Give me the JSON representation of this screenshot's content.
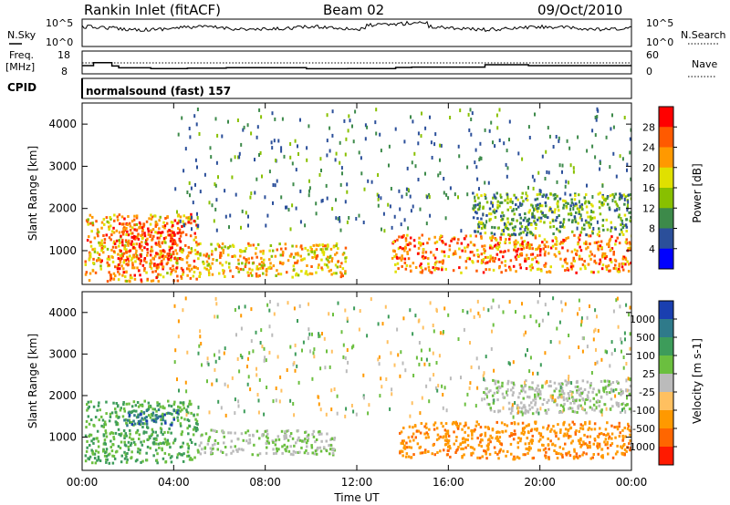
{
  "header": {
    "station": "Rankin Inlet (fitACF)",
    "beam": "Beam 02",
    "date": "09/Oct/2010"
  },
  "nsky_panel": {
    "left_label": "N.Sky",
    "right_label": "N.Search",
    "left_ticks": [
      "10^5",
      "10^0"
    ],
    "right_ticks": [
      "10^5",
      "10^0"
    ]
  },
  "freq_panel": {
    "left_label_1": "Freq.",
    "left_label_2": "[MHz]",
    "right_label": "Nave",
    "left_ticks": [
      "18",
      "8"
    ],
    "right_ticks": [
      "60",
      "0"
    ]
  },
  "cpid_panel": {
    "label": "CPID",
    "program": "normalsound (fast) 157"
  },
  "power_panel": {
    "ylabel": "Slant Range [km]",
    "colorbar_label": "Power [dB]",
    "colorbar_ticks": [
      "28",
      "24",
      "20",
      "16",
      "12",
      "8",
      "4"
    ],
    "colorbar_colors": [
      "#ff0000",
      "#ff5a00",
      "#ff9900",
      "#e0e000",
      "#88c000",
      "#3d8a4a",
      "#2b4f9a",
      "#0000ff"
    ]
  },
  "velocity_panel": {
    "ylabel": "Slant Range [km]",
    "colorbar_label": "Velocity [m s-1]",
    "colorbar_ticks": [
      "1000",
      "500",
      "100",
      "25",
      "-25",
      "-100",
      "-500",
      "-1000"
    ],
    "colorbar_colors": [
      "#1a3fb0",
      "#2f7a8a",
      "#3d9c5a",
      "#6bbf3f",
      "#bbbbbb",
      "#ffc060",
      "#ff9900",
      "#ff6600",
      "#ff1a00"
    ]
  },
  "xaxis": {
    "label": "Time UT",
    "ticks": [
      "00:00",
      "04:00",
      "08:00",
      "12:00",
      "16:00",
      "20:00",
      "00:00"
    ]
  },
  "chart_data": {
    "type": "heatmap",
    "title": "Rankin Inlet (fitACF)   Beam 02   09/Oct/2010",
    "xlabel": "Time UT",
    "ylabel": "Slant Range [km]",
    "xlim_hours": [
      0,
      24
    ],
    "ylim_km": [
      200,
      4500
    ],
    "y_ticks": [
      1000,
      2000,
      3000,
      4000
    ],
    "x_ticks": [
      "00:00",
      "04:00",
      "08:00",
      "12:00",
      "16:00",
      "20:00",
      "00:00"
    ],
    "panels": [
      "Power [dB]",
      "Velocity [m s-1]"
    ],
    "power_colorbar_ticks_db": [
      4,
      8,
      12,
      16,
      20,
      24,
      28
    ],
    "velocity_colorbar_ticks_ms": [
      -1000,
      -500,
      -100,
      -25,
      25,
      100,
      500,
      1000
    ],
    "frequency_mhz_step": [
      {
        "t": 0.0,
        "f": 12.0
      },
      {
        "t": 0.5,
        "f": 13.6
      },
      {
        "t": 1.3,
        "f": 11.8
      },
      {
        "t": 1.6,
        "f": 10.8
      },
      {
        "t": 3.0,
        "f": 10.4
      },
      {
        "t": 4.6,
        "f": 10.6
      },
      {
        "t": 6.3,
        "f": 10.9
      },
      {
        "t": 9.8,
        "f": 10.3
      },
      {
        "t": 11.6,
        "f": 10.4
      },
      {
        "t": 13.7,
        "f": 11.0
      },
      {
        "t": 14.4,
        "f": 11.2
      },
      {
        "t": 17.6,
        "f": 12.5
      },
      {
        "t": 19.5,
        "f": 12.0
      },
      {
        "t": 24.0,
        "f": 12.0
      }
    ],
    "scatter_regions": [
      {
        "panel": "power",
        "t": [
          0.1,
          5.0
        ],
        "range_km": [
          300,
          1900
        ],
        "level_db": 22
      },
      {
        "panel": "power",
        "t": [
          1.5,
          4.3
        ],
        "range_km": [
          600,
          1700
        ],
        "level_db": 28
      },
      {
        "panel": "power",
        "t": [
          5.0,
          11.5
        ],
        "range_km": [
          400,
          1200
        ],
        "level_db": 20
      },
      {
        "panel": "power",
        "t": [
          13.5,
          24.0
        ],
        "range_km": [
          500,
          1400
        ],
        "level_db": 24
      },
      {
        "panel": "power",
        "t": [
          17.0,
          24.0
        ],
        "range_km": [
          1400,
          2400
        ],
        "level_db": 12
      },
      {
        "panel": "velocity",
        "t": [
          0.1,
          5.0
        ],
        "range_km": [
          400,
          1900
        ],
        "level_ms": 100
      },
      {
        "panel": "velocity",
        "t": [
          1.8,
          4.2
        ],
        "range_km": [
          1300,
          1700
        ],
        "level_ms": 800
      },
      {
        "panel": "velocity",
        "t": [
          5.0,
          11.0
        ],
        "range_km": [
          600,
          1200
        ],
        "level_ms": 20
      },
      {
        "panel": "velocity",
        "t": [
          13.8,
          24.0
        ],
        "range_km": [
          500,
          1400
        ],
        "level_ms": -400
      },
      {
        "panel": "velocity",
        "t": [
          17.5,
          24.0
        ],
        "range_km": [
          1600,
          2400
        ],
        "level_ms": 10
      }
    ]
  }
}
